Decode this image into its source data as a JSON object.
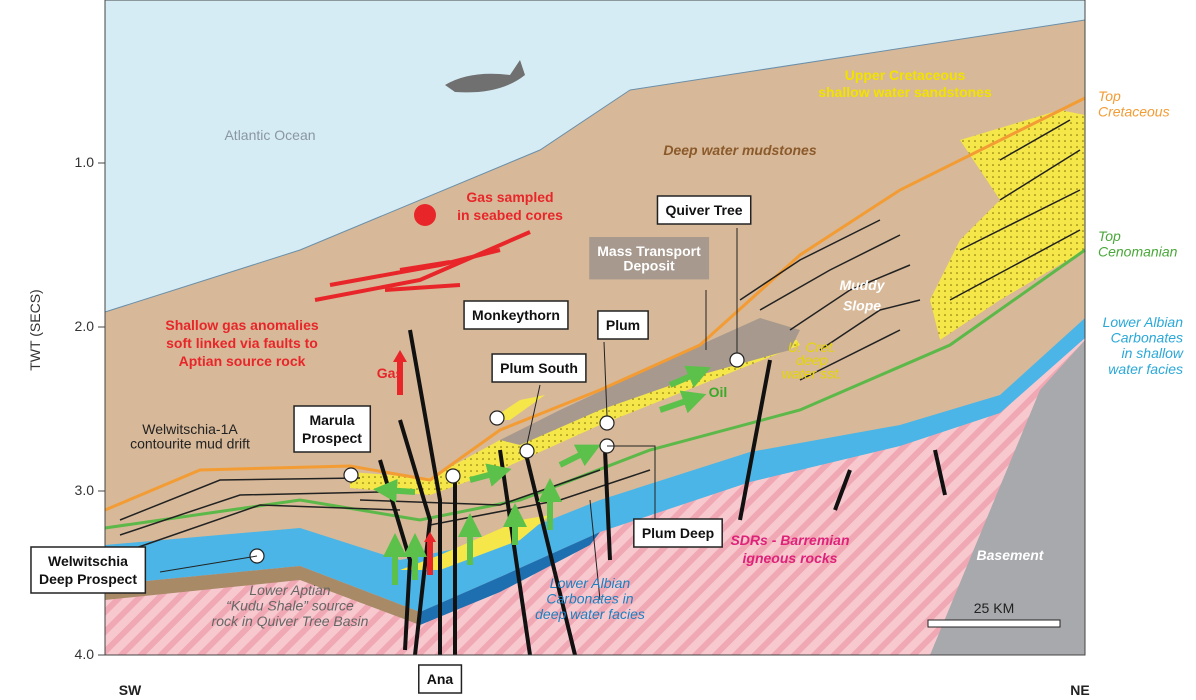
{
  "axis": {
    "label": "TWT (SECS)",
    "ticks": [
      "1.0",
      "2.0",
      "3.0",
      "4.0"
    ]
  },
  "directions": {
    "left": "SW",
    "right": "NE"
  },
  "labels": [
    {
      "lines": [
        "Atlantic Ocean"
      ]
    },
    {
      "lines": [
        "Upper Cretaceous",
        "shallow water sandstones"
      ]
    },
    {
      "lines": [
        "Deep water mudstones"
      ]
    },
    {
      "lines": [
        "Top",
        "Cretaceous"
      ]
    },
    {
      "lines": [
        "Top",
        "Cenomanian"
      ]
    },
    {
      "lines": [
        "Lower Albian",
        "Carbonates",
        "in shallow",
        "water facies"
      ]
    },
    {
      "lines": [
        "Gas sampled",
        "in seabed cores"
      ]
    },
    {
      "lines": [
        "Quiver Tree"
      ]
    },
    {
      "lines": [
        "Mass Transport",
        "Deposit"
      ]
    },
    {
      "lines": [
        "Muddy",
        "Slope"
      ]
    },
    {
      "lines": [
        "Monkeythorn"
      ]
    },
    {
      "lines": [
        "Plum"
      ]
    },
    {
      "lines": [
        "Plum South"
      ]
    },
    {
      "lines": [
        "Oil"
      ]
    },
    {
      "lines": [
        "U. Cret.",
        "deep",
        "water sst."
      ]
    },
    {
      "lines": [
        "Gas"
      ]
    },
    {
      "lines": [
        "Shallow gas anomalies",
        "soft linked via faults to",
        "Aptian source rock"
      ]
    },
    {
      "lines": [
        "Marula",
        "Prospect"
      ]
    },
    {
      "lines": [
        "Welwitschia-1A",
        "contourite mud drift"
      ]
    },
    {
      "lines": [
        "Plum Deep"
      ]
    },
    {
      "lines": [
        "SDRs - Barremian",
        "igneous rocks"
      ]
    },
    {
      "lines": [
        "Basement"
      ]
    },
    {
      "lines": [
        "25 KM"
      ]
    },
    {
      "lines": [
        "Welwitschia",
        "Deep Prospect"
      ]
    },
    {
      "lines": [
        "Lower Aptian",
        "“Kudu Shale” source",
        "rock in Quiver Tree Basin"
      ]
    },
    {
      "lines": [
        "Lower Albian",
        "Carbonates in",
        "deep water facies"
      ]
    },
    {
      "lines": [
        "Ana"
      ]
    }
  ]
}
